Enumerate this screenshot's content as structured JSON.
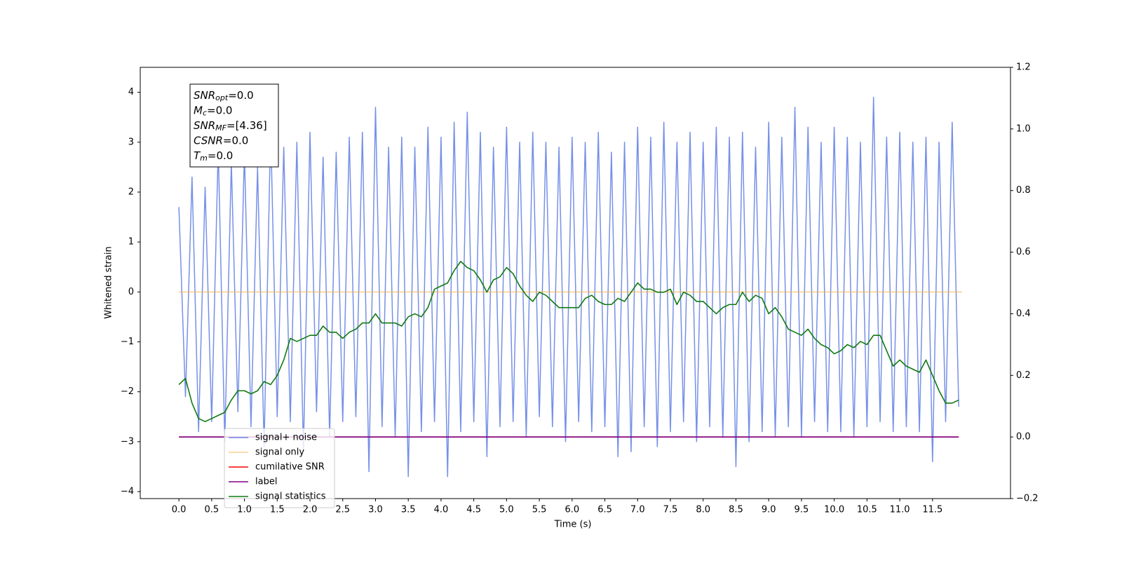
{
  "chart_data": {
    "type": "line",
    "xlabel": "Time (s)",
    "ylabel": "Whitened strain",
    "xlim": [
      -0.59,
      12.69
    ],
    "ylim": [
      -4.14,
      4.5
    ],
    "y2lim": [
      -0.2,
      1.2
    ],
    "xticks": [
      {
        "value": 0,
        "label": "0.0"
      },
      0.5,
      {
        "value": 1,
        "label": "1.0"
      },
      1.5,
      {
        "value": 2,
        "label": "2.0"
      },
      2.5,
      {
        "value": 3,
        "label": "3.0"
      },
      3.5,
      {
        "value": 4,
        "label": "4.0"
      },
      4.5,
      {
        "value": 5,
        "label": "5.0"
      },
      5.5,
      {
        "value": 6,
        "label": "6.0"
      },
      6.5,
      {
        "value": 7,
        "label": "7.0"
      },
      7.5,
      {
        "value": 8,
        "label": "8.0"
      },
      8.5,
      {
        "value": 9,
        "label": "9.0"
      },
      9.5,
      {
        "value": 10,
        "label": "10.0"
      },
      10.5,
      {
        "value": 11,
        "label": "11.0"
      },
      11.5
    ],
    "yticks": [
      {
        "value": -4,
        "label": "−4"
      },
      {
        "value": -3,
        "label": "−3"
      },
      {
        "value": -2,
        "label": "−2"
      },
      {
        "value": -1,
        "label": "−1"
      },
      0,
      1,
      2,
      3,
      4
    ],
    "y2ticks": [
      {
        "value": -0.2,
        "label": "−0.2"
      },
      {
        "value": 0,
        "label": "0.0"
      },
      0.2,
      0.4,
      0.6,
      0.8,
      {
        "value": 1,
        "label": "1.0"
      },
      1.2
    ],
    "legend_loc": "lower left",
    "annotations": [
      {
        "text": "SNR",
        "sub": "opt",
        "suffix": "=0.0"
      },
      {
        "text": "M",
        "sub": "c",
        "suffix": "=0.0"
      },
      {
        "text": "SNR",
        "sub": "MF",
        "suffix": "=[4.36]"
      },
      {
        "text": "CSNR",
        "suffix": "=0.0"
      },
      {
        "text": "T",
        "sub": "m",
        "suffix": "=0.0"
      }
    ],
    "x": [
      0,
      0.1,
      0.2,
      0.3,
      0.4,
      0.5,
      0.6,
      0.7,
      0.8,
      0.9,
      1,
      1.1,
      1.2,
      1.3,
      1.4,
      1.5,
      1.6,
      1.7,
      1.8,
      1.9,
      2,
      2.1,
      2.2,
      2.3,
      2.4,
      2.5,
      2.6,
      2.7,
      2.8,
      2.9,
      3,
      3.1,
      3.2,
      3.3,
      3.4,
      3.5,
      3.6,
      3.7,
      3.8,
      3.9,
      4,
      4.1,
      4.2,
      4.3,
      4.4,
      4.5,
      4.6,
      4.7,
      4.8,
      4.9,
      5,
      5.1,
      5.2,
      5.3,
      5.4,
      5.5,
      5.6,
      5.7,
      5.8,
      5.9,
      6,
      6.1,
      6.2,
      6.3,
      6.4,
      6.5,
      6.6,
      6.7,
      6.8,
      6.9,
      7,
      7.1,
      7.2,
      7.3,
      7.4,
      7.5,
      7.6,
      7.7,
      7.8,
      7.9,
      8,
      8.1,
      8.2,
      8.3,
      8.4,
      8.5,
      8.6,
      8.7,
      8.8,
      8.9,
      9,
      9.1,
      9.2,
      9.3,
      9.4,
      9.5,
      9.6,
      9.7,
      9.8,
      9.9,
      10,
      10.1,
      10.2,
      10.3,
      10.4,
      10.5,
      10.6,
      10.7,
      10.8,
      10.9,
      11,
      11.1,
      11.2,
      11.3,
      11.4,
      11.5,
      11.6,
      11.7,
      11.8,
      11.9
    ],
    "series": [
      {
        "name": "signal+ noise",
        "color": "#6f8ae6",
        "axis": "y",
        "values": [
          1.7,
          -2.1,
          2.3,
          -2.8,
          2.1,
          -2.6,
          2.9,
          -3.0,
          2.6,
          -2.4,
          2.8,
          -2.7,
          2.5,
          -3.1,
          3.3,
          -2.5,
          2.9,
          -2.6,
          3.0,
          -3.2,
          3.2,
          -2.4,
          2.7,
          -2.9,
          2.8,
          -2.6,
          3.1,
          -2.5,
          3.2,
          -3.6,
          3.7,
          -2.7,
          2.9,
          -2.9,
          3.1,
          -3.7,
          2.9,
          -2.8,
          3.3,
          -2.6,
          3.1,
          -3.7,
          3.4,
          -2.8,
          3.6,
          -2.6,
          3.2,
          -3.3,
          2.9,
          -2.7,
          3.3,
          -2.6,
          3.0,
          -2.9,
          3.2,
          -2.5,
          3.0,
          -2.7,
          2.9,
          -3.0,
          3.1,
          -2.6,
          3.0,
          -2.8,
          3.2,
          -2.7,
          2.8,
          -3.3,
          3.0,
          -3.2,
          3.3,
          -2.7,
          3.1,
          -3.1,
          3.4,
          -2.8,
          3.0,
          -2.6,
          3.2,
          -3.0,
          3.0,
          -2.7,
          3.3,
          -2.9,
          3.1,
          -3.5,
          3.2,
          -3.0,
          2.9,
          -2.8,
          3.4,
          -2.9,
          3.1,
          -2.7,
          3.7,
          -2.9,
          3.3,
          -2.6,
          3.0,
          -2.8,
          3.3,
          -2.8,
          3.1,
          -2.9,
          3.0,
          -2.7,
          3.9,
          -2.6,
          3.1,
          -2.8,
          3.2,
          -2.7,
          3.0,
          -2.8,
          3.1,
          -3.4,
          3.0,
          -2.6,
          3.4,
          -2.3
        ]
      },
      {
        "name": "signal only",
        "color": "#f5b04a",
        "axis": "y",
        "x": [
          0,
          11.95
        ],
        "values": [
          0,
          0
        ]
      },
      {
        "name": "cumilative SNR",
        "color": "#ff0000",
        "axis": "y2",
        "x": [
          0,
          11.9
        ],
        "values": [
          0,
          0
        ]
      },
      {
        "name": "label",
        "color": "#800080",
        "axis": "y2",
        "x": [
          0,
          11.9
        ],
        "values": [
          0,
          0
        ]
      },
      {
        "name": "signal statistics",
        "color": "#117a11",
        "axis": "y2",
        "values": [
          0.17,
          0.19,
          0.11,
          0.06,
          0.05,
          0.06,
          0.07,
          0.08,
          0.12,
          0.15,
          0.15,
          0.14,
          0.15,
          0.18,
          0.17,
          0.2,
          0.25,
          0.32,
          0.31,
          0.32,
          0.33,
          0.33,
          0.36,
          0.34,
          0.34,
          0.32,
          0.34,
          0.35,
          0.37,
          0.37,
          0.4,
          0.37,
          0.37,
          0.37,
          0.36,
          0.39,
          0.4,
          0.39,
          0.42,
          0.48,
          0.49,
          0.5,
          0.54,
          0.57,
          0.55,
          0.54,
          0.51,
          0.47,
          0.51,
          0.52,
          0.55,
          0.53,
          0.49,
          0.46,
          0.44,
          0.47,
          0.46,
          0.44,
          0.42,
          0.42,
          0.42,
          0.42,
          0.45,
          0.46,
          0.44,
          0.43,
          0.43,
          0.45,
          0.44,
          0.47,
          0.5,
          0.48,
          0.48,
          0.47,
          0.47,
          0.48,
          0.43,
          0.47,
          0.46,
          0.44,
          0.44,
          0.42,
          0.4,
          0.42,
          0.43,
          0.43,
          0.47,
          0.44,
          0.46,
          0.45,
          0.4,
          0.42,
          0.39,
          0.35,
          0.34,
          0.33,
          0.35,
          0.32,
          0.3,
          0.29,
          0.27,
          0.28,
          0.3,
          0.29,
          0.31,
          0.3,
          0.33,
          0.33,
          0.28,
          0.23,
          0.25,
          0.23,
          0.22,
          0.21,
          0.25,
          0.2,
          0.15,
          0.11,
          0.11,
          0.12
        ]
      }
    ]
  }
}
